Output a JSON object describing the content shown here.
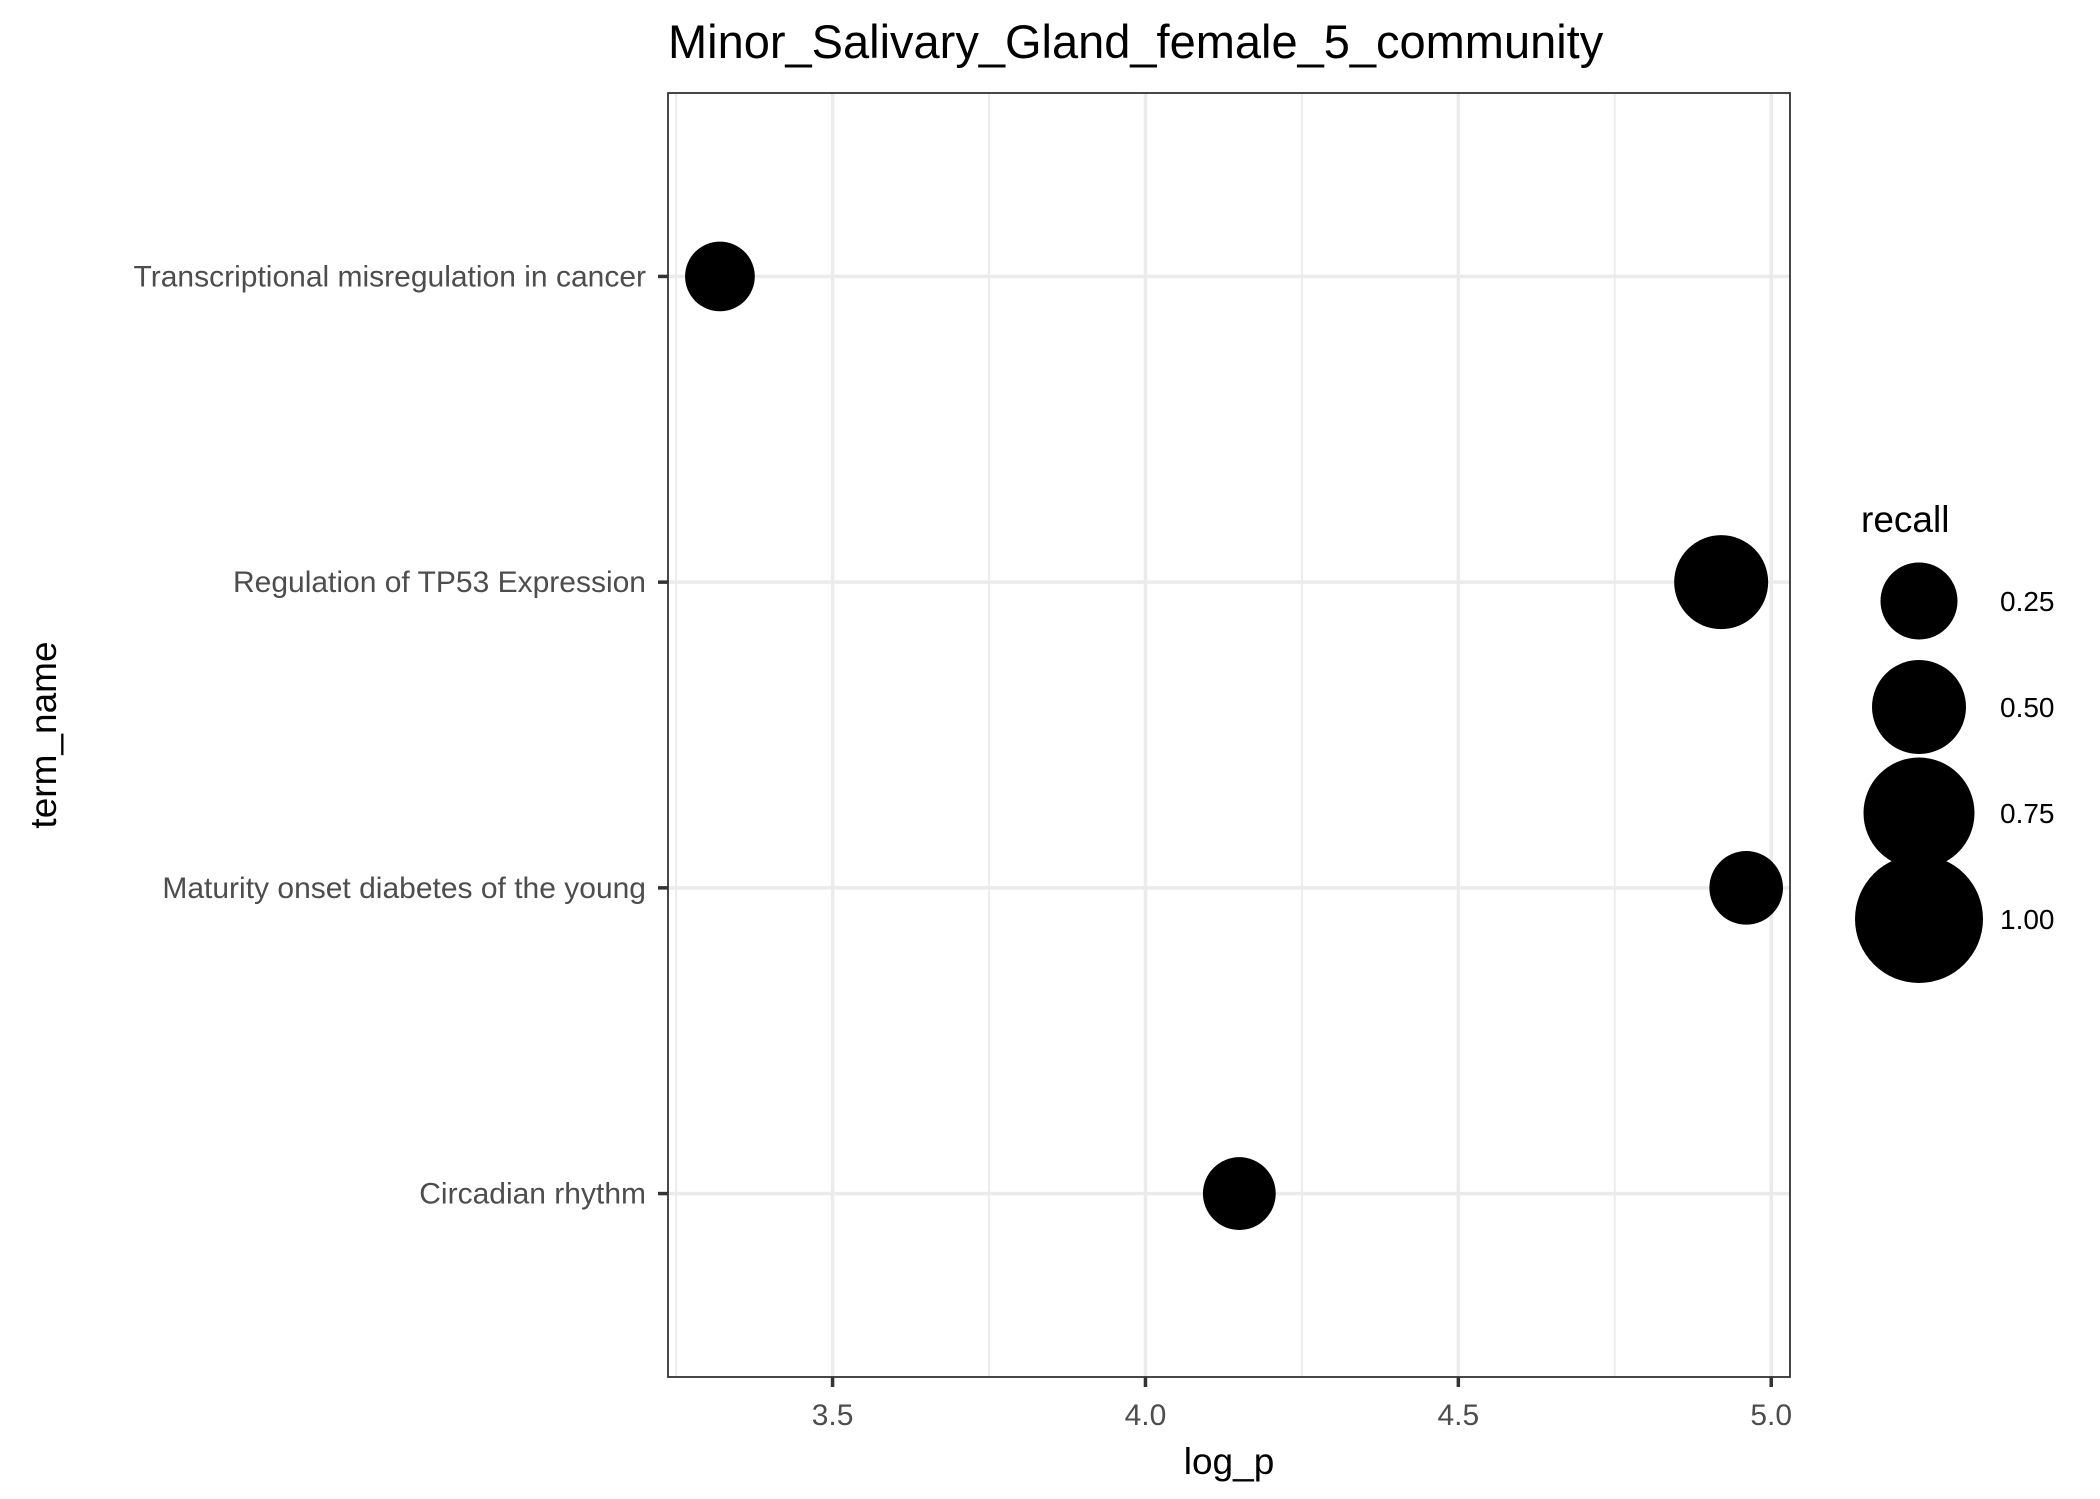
{
  "chart_data": {
    "type": "scatter",
    "title": "Minor_Salivary_Gland_female_5_community",
    "xlabel": "log_p",
    "ylabel": "term_name",
    "xlim": [
      3.237,
      5.03
    ],
    "x_ticks": [
      3.5,
      4.0,
      4.5,
      5.0
    ],
    "x_tick_labels": [
      "3.5",
      "4.0",
      "4.5",
      "5.0"
    ],
    "categories": [
      "Circadian rhythm",
      "Maturity onset diabetes of the young",
      "Regulation of TP53 Expression",
      "Transcriptional misregulation in cancer"
    ],
    "points": [
      {
        "term_name": "Transcriptional misregulation in cancer",
        "log_p": 3.32,
        "recall": 0.143
      },
      {
        "term_name": "Regulation of TP53 Expression",
        "log_p": 4.92,
        "recall": 0.5
      },
      {
        "term_name": "Maturity onset diabetes of the young",
        "log_p": 4.96,
        "recall": 0.2
      },
      {
        "term_name": "Circadian rhythm",
        "log_p": 4.15,
        "recall": 0.188
      }
    ],
    "size_legend": {
      "title": "recall",
      "values": [
        0.25,
        0.5,
        0.75,
        1.0
      ],
      "labels": [
        "0.25",
        "0.50",
        "0.75",
        "1.00"
      ]
    },
    "grid": true,
    "legend_position": "right",
    "colors": {
      "point": "#000000",
      "grid": "#ebebeb",
      "panel_border": "#333333",
      "tick_label": "#4d4d4d"
    }
  }
}
